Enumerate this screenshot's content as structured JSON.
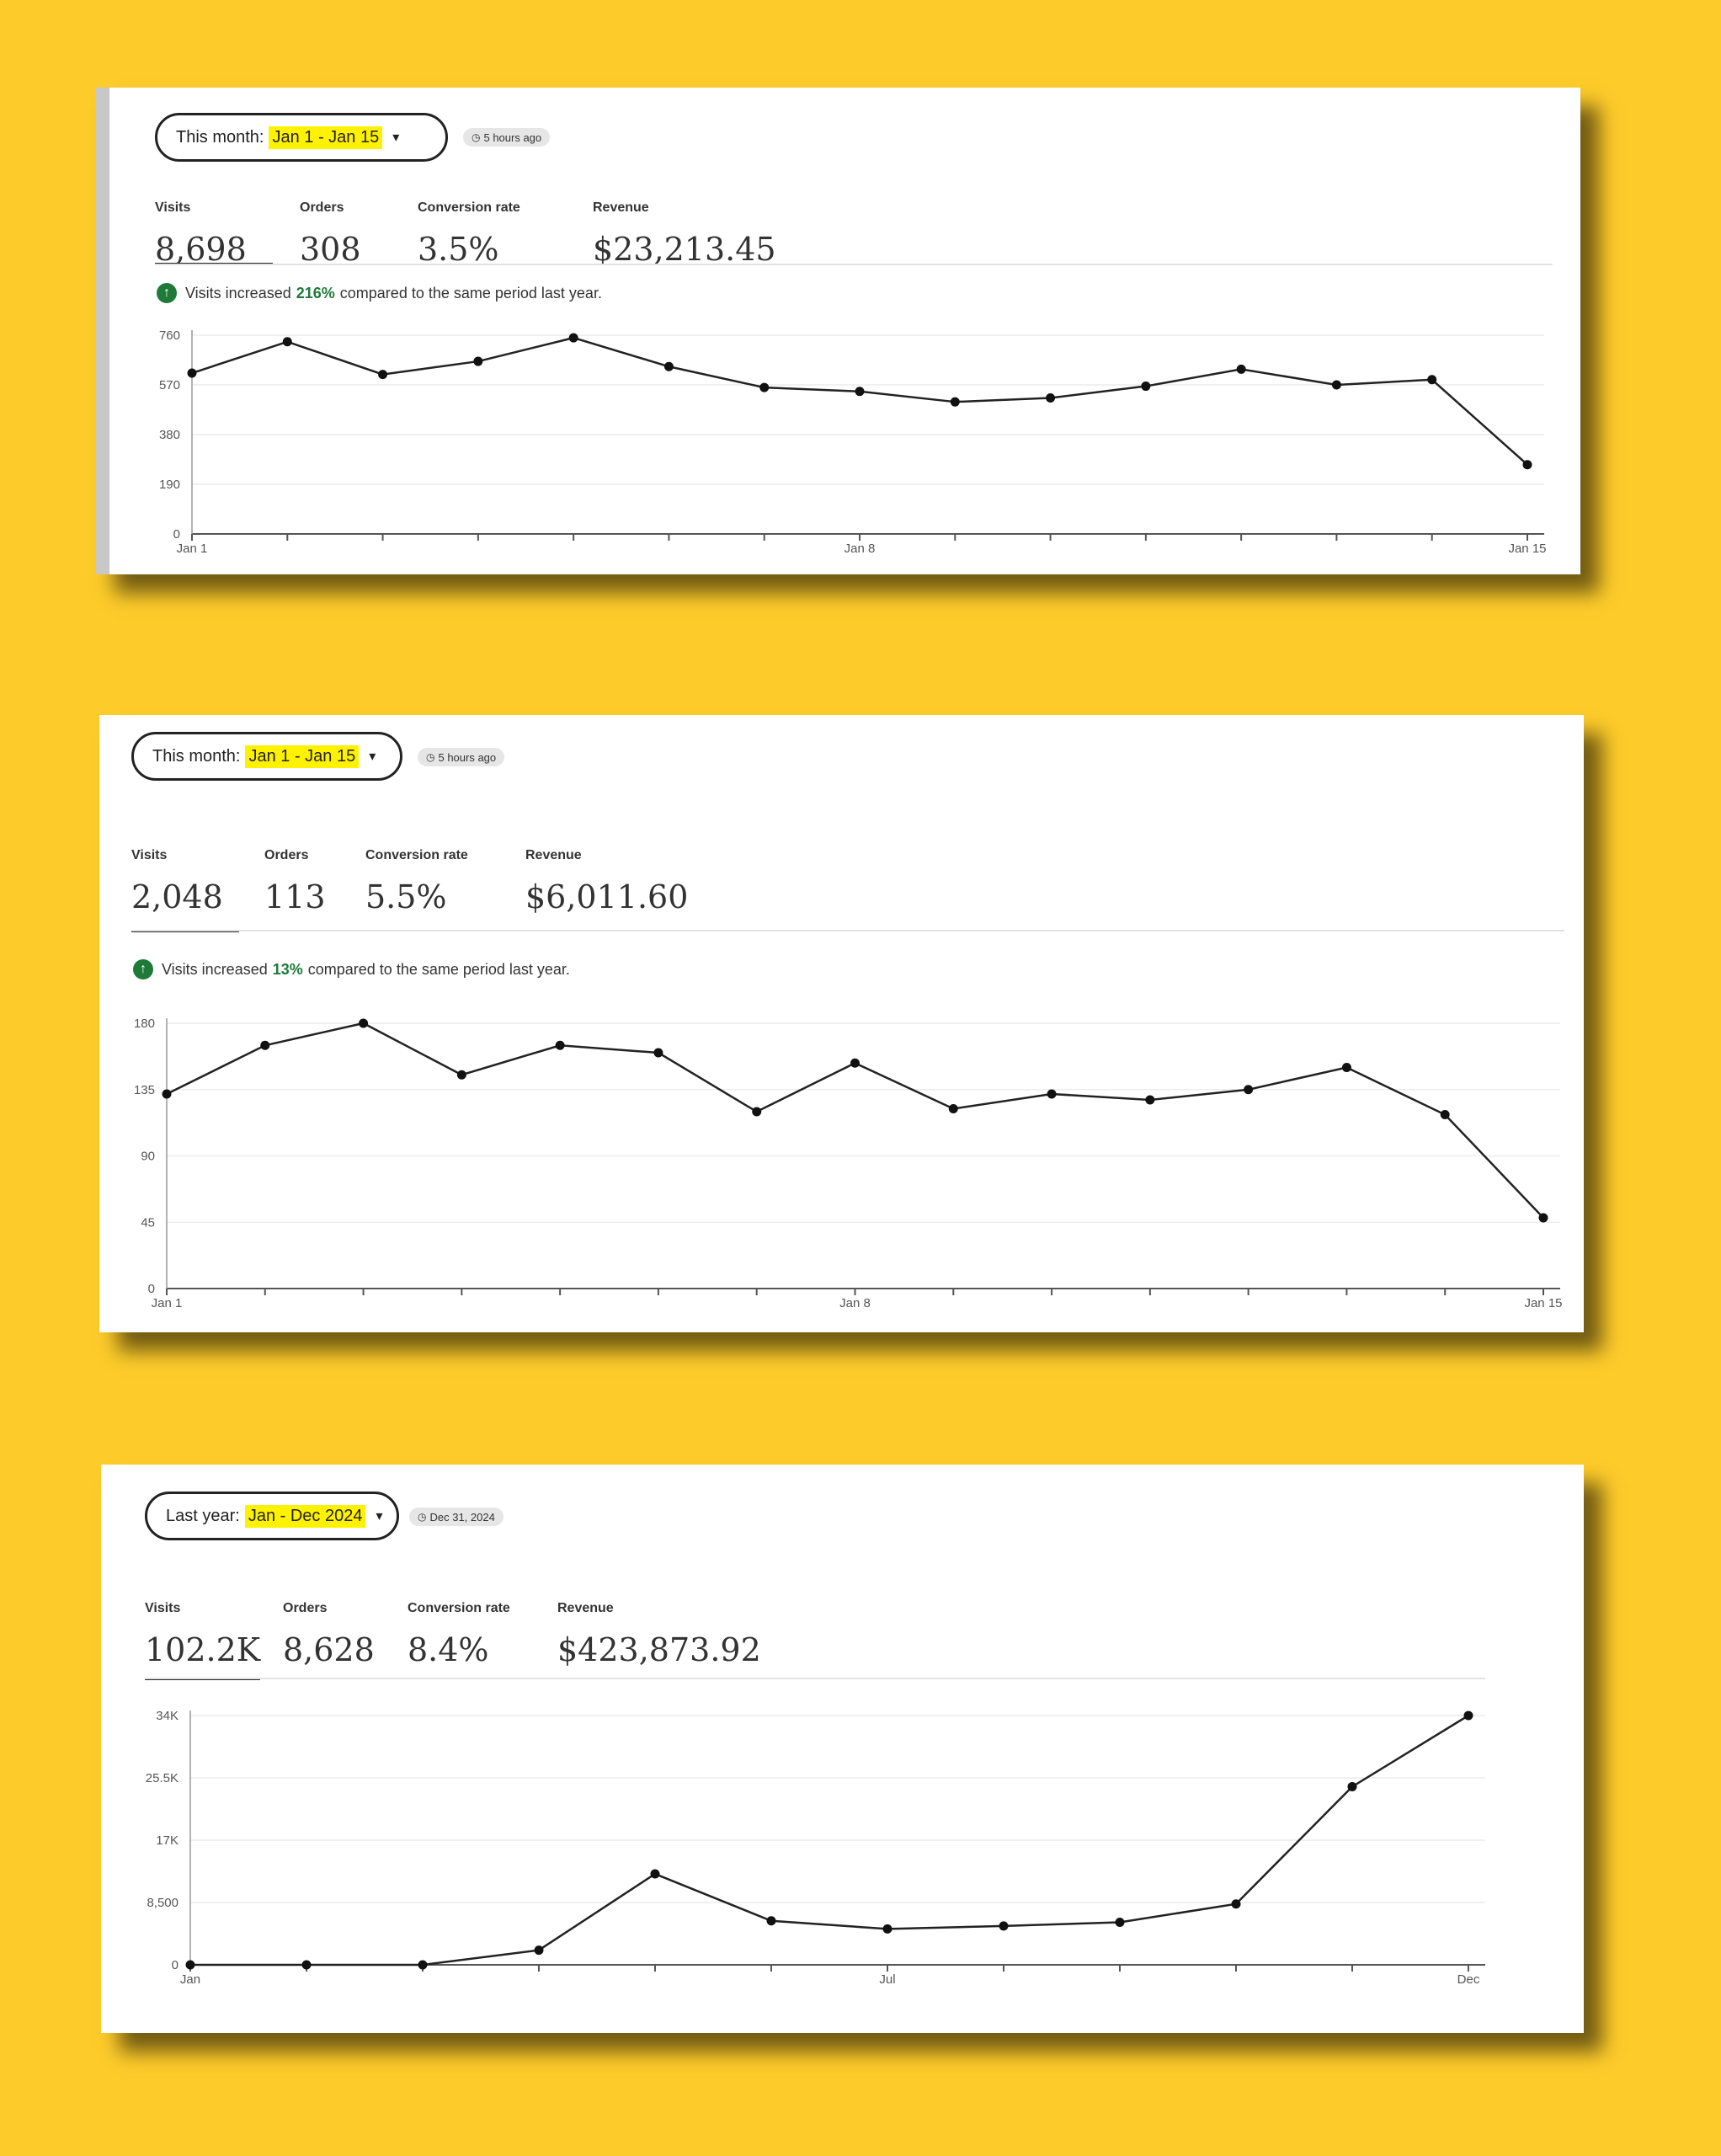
{
  "cards": [
    {
      "period_label": "This month:",
      "period_range": "Jan 1 - Jan 15",
      "updated": "5 hours ago",
      "metrics": [
        {
          "label": "Visits",
          "value": "8,698"
        },
        {
          "label": "Orders",
          "value": "308"
        },
        {
          "label": "Conversion rate",
          "value": "3.5%"
        },
        {
          "label": "Revenue",
          "value": "$23,213.45"
        }
      ],
      "insight": {
        "prefix": "Visits increased",
        "pct": "216%",
        "suffix": "compared to the same period last year."
      }
    },
    {
      "period_label": "This month:",
      "period_range": "Jan 1 - Jan 15",
      "updated": "5 hours ago",
      "metrics": [
        {
          "label": "Visits",
          "value": "2,048"
        },
        {
          "label": "Orders",
          "value": "113"
        },
        {
          "label": "Conversion rate",
          "value": "5.5%"
        },
        {
          "label": "Revenue",
          "value": "$6,011.60"
        }
      ],
      "insight": {
        "prefix": "Visits increased",
        "pct": "13%",
        "suffix": "compared to the same period last year."
      }
    },
    {
      "period_label": "Last year:",
      "period_range": "Jan - Dec 2024",
      "updated": "Dec 31, 2024",
      "metrics": [
        {
          "label": "Visits",
          "value": "102.2K"
        },
        {
          "label": "Orders",
          "value": "8,628"
        },
        {
          "label": "Conversion rate",
          "value": "8.4%"
        },
        {
          "label": "Revenue",
          "value": "$423,873.92"
        }
      ]
    }
  ],
  "chart_data": [
    {
      "type": "line",
      "x": [
        1,
        2,
        3,
        4,
        5,
        6,
        7,
        8,
        9,
        10,
        11,
        12,
        13,
        14,
        15
      ],
      "values": [
        615,
        735,
        610,
        660,
        750,
        640,
        560,
        545,
        505,
        520,
        565,
        630,
        570,
        590,
        265
      ],
      "ylim": [
        0,
        760
      ],
      "yticks": [
        0,
        190,
        380,
        570,
        760
      ],
      "ytick_labels": [
        "0",
        "190",
        "380",
        "570",
        "760"
      ],
      "xtick_labels": [
        {
          "at": 1,
          "label": "Jan 1"
        },
        {
          "at": 8,
          "label": "Jan 8"
        },
        {
          "at": 15,
          "label": "Jan 15"
        }
      ]
    },
    {
      "type": "line",
      "x": [
        1,
        2,
        3,
        4,
        5,
        6,
        7,
        8,
        9,
        10,
        11,
        12,
        13,
        14,
        15
      ],
      "values": [
        132,
        165,
        180,
        145,
        165,
        160,
        120,
        153,
        122,
        132,
        128,
        135,
        150,
        118,
        48
      ],
      "ylim": [
        0,
        180
      ],
      "yticks": [
        0,
        45,
        90,
        135,
        180
      ],
      "ytick_labels": [
        "0",
        "45",
        "90",
        "135",
        "180"
      ],
      "xtick_labels": [
        {
          "at": 1,
          "label": "Jan 1"
        },
        {
          "at": 8,
          "label": "Jan 8"
        },
        {
          "at": 15,
          "label": "Jan 15"
        }
      ]
    },
    {
      "type": "line",
      "x": [
        1,
        2,
        3,
        4,
        5,
        6,
        7,
        8,
        9,
        10,
        11,
        12
      ],
      "values": [
        0,
        0,
        0,
        2000,
        12400,
        6000,
        4900,
        5300,
        5800,
        8300,
        24300,
        34000
      ],
      "ylim": [
        0,
        34000
      ],
      "yticks": [
        0,
        8500,
        17000,
        25500,
        34000
      ],
      "ytick_labels": [
        "0",
        "8,500",
        "17K",
        "25.5K",
        "34K"
      ],
      "xtick_labels": [
        {
          "at": 1,
          "label": "Jan"
        },
        {
          "at": 7,
          "label": "Jul"
        },
        {
          "at": 12,
          "label": "Dec"
        }
      ]
    }
  ]
}
